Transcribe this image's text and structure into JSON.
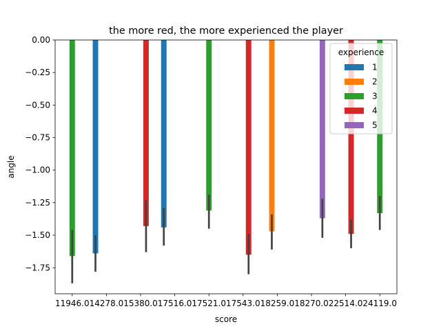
{
  "chart_data": {
    "type": "bar",
    "title": "the more red, the more experienced the player",
    "xlabel": "score",
    "ylabel": "angle",
    "ylim": [
      -1.95,
      0.0
    ],
    "yticks": [
      0.0,
      -0.25,
      -0.5,
      -0.75,
      -1.0,
      -1.25,
      -1.5,
      -1.75
    ],
    "ytick_labels": [
      "0.00",
      "−0.25",
      "−0.50",
      "−0.75",
      "−1.00",
      "−1.25",
      "−1.50",
      "−1.75"
    ],
    "categories": [
      "11946.0",
      "14278.0",
      "15380.0",
      "17516.0",
      "17521.0",
      "17543.0",
      "18259.0",
      "18270.0",
      "22514.0",
      "24119.0"
    ],
    "hue_levels": [
      "1",
      "2",
      "3",
      "4",
      "5"
    ],
    "legend": {
      "title": "experience",
      "placement": "top-right",
      "entries": [
        {
          "label": "1",
          "color": "#1f77b4"
        },
        {
          "label": "2",
          "color": "#ff7f0e"
        },
        {
          "label": "3",
          "color": "#2ca02c"
        },
        {
          "label": "4",
          "color": "#d62728"
        },
        {
          "label": "5",
          "color": "#9467bd"
        }
      ]
    },
    "bars": [
      {
        "category": "11946.0",
        "experience": "3",
        "value": -1.66,
        "ci": [
          -1.87,
          -1.46
        ]
      },
      {
        "category": "14278.0",
        "experience": "1",
        "value": -1.64,
        "ci": [
          -1.78,
          -1.5
        ]
      },
      {
        "category": "15380.0",
        "experience": "4",
        "value": -1.43,
        "ci": [
          -1.63,
          -1.23
        ]
      },
      {
        "category": "17516.0",
        "experience": "1",
        "value": -1.44,
        "ci": [
          -1.58,
          -1.29
        ]
      },
      {
        "category": "17521.0",
        "experience": "3",
        "value": -1.31,
        "ci": [
          -1.45,
          -1.19
        ]
      },
      {
        "category": "17543.0",
        "experience": "4",
        "value": -1.65,
        "ci": [
          -1.8,
          -1.49
        ]
      },
      {
        "category": "18259.0",
        "experience": "2",
        "value": -1.47,
        "ci": [
          -1.61,
          -1.34
        ]
      },
      {
        "category": "18270.0",
        "experience": "5",
        "value": -1.37,
        "ci": [
          -1.52,
          -1.22
        ]
      },
      {
        "category": "22514.0",
        "experience": "4",
        "value": -1.49,
        "ci": [
          -1.6,
          -1.38
        ]
      },
      {
        "category": "24119.0",
        "experience": "3",
        "value": -1.33,
        "ci": [
          -1.46,
          -1.2
        ]
      }
    ]
  }
}
